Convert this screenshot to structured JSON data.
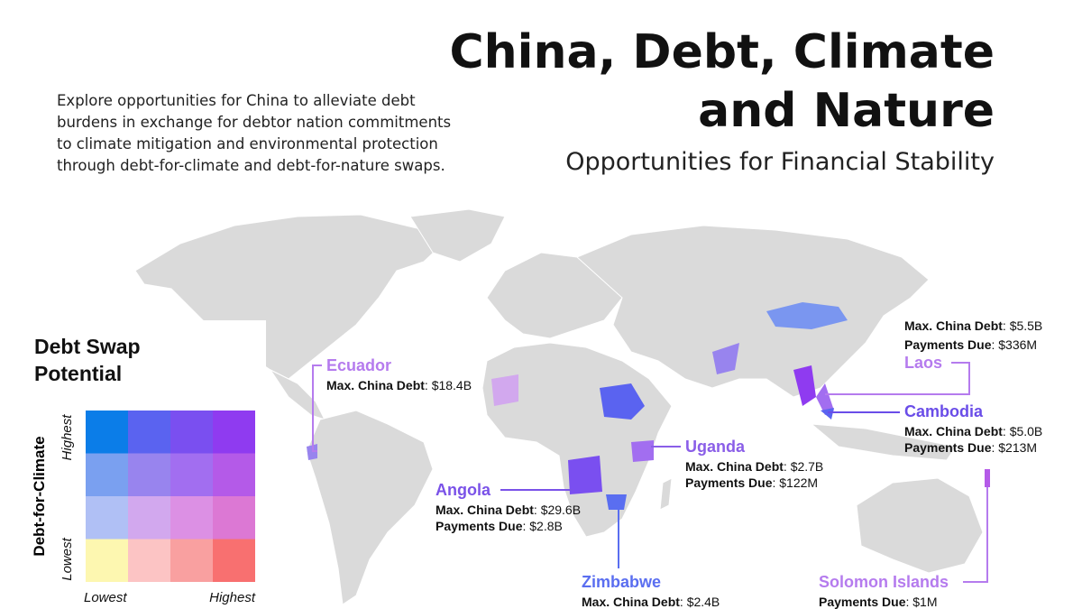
{
  "header": {
    "title_lines": [
      "China, Debt, Climate",
      "and Nature"
    ],
    "subtitle": "Opportunities for Financial Stability",
    "intro_lines": [
      "Explore opportunities for China to alleviate debt",
      "burdens in exchange for debtor nation commitments",
      "to climate mitigation and environmental protection",
      "through debt-for-climate and debt-for-nature swaps."
    ]
  },
  "legend": {
    "title_lines": [
      "Debt Swap",
      "Potential"
    ],
    "y_axis_label": "Debt-for-Climate",
    "y_high": "Highest",
    "y_low": "Lowest",
    "x_low": "Lowest",
    "x_high": "Highest"
  },
  "annotations": [
    {
      "country": "Ecuador",
      "fields": [
        {
          "label": "Max. China Debt",
          "value": "$18.4B"
        }
      ]
    },
    {
      "country": "Laos",
      "fields": [
        {
          "label": "Max. China Debt",
          "value": "$5.5B"
        },
        {
          "label": "Payments Due",
          "value": "$336M"
        }
      ]
    },
    {
      "country": "Cambodia",
      "fields": [
        {
          "label": "Max. China Debt",
          "value": "$5.0B"
        },
        {
          "label": "Payments Due",
          "value": "$213M"
        }
      ]
    },
    {
      "country": "Uganda",
      "fields": [
        {
          "label": "Max. China Debt",
          "value": "$2.7B"
        },
        {
          "label": "Payments Due",
          "value": "$122M"
        }
      ]
    },
    {
      "country": "Angola",
      "fields": [
        {
          "label": "Max. China Debt",
          "value": "$29.6B"
        },
        {
          "label": "Payments Due",
          "value": "$2.8B"
        }
      ]
    },
    {
      "country": "Zimbabwe",
      "fields": [
        {
          "label": "Max. China Debt",
          "value": "$2.4B"
        }
      ]
    },
    {
      "country": "Solomon Islands",
      "fields": [
        {
          "label": "Payments Due",
          "value": "$1M"
        }
      ]
    }
  ]
}
